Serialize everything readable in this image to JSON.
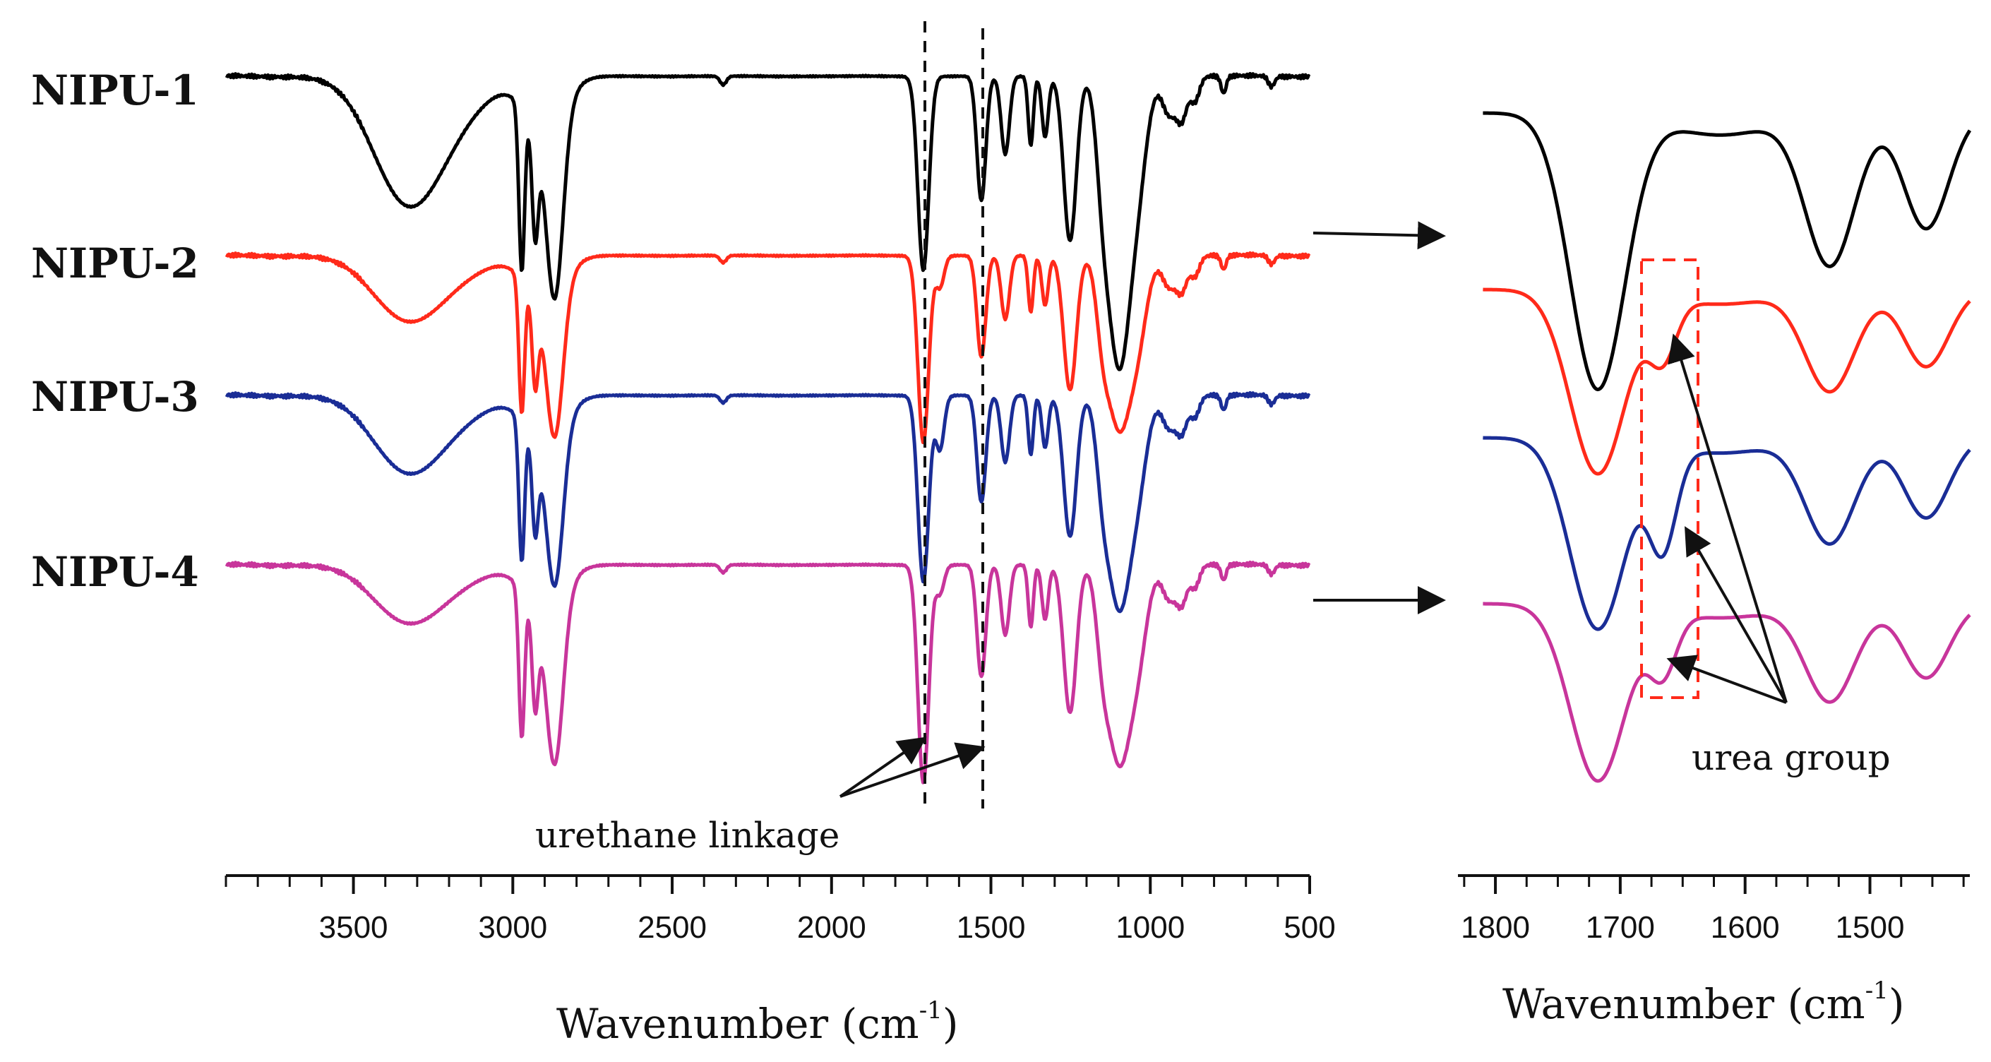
{
  "chart_data": [
    {
      "type": "line",
      "panel": "full-spectrum",
      "xlabel": "Wavenumber (cm",
      "xlabel_sup": "-1",
      "xlabel_close": ")",
      "xlim": [
        3900,
        500
      ],
      "ylabel": "",
      "ticks": [
        3500,
        3000,
        2500,
        2000,
        1500,
        1000,
        500
      ],
      "tick_labels": [
        "3500",
        "3000",
        "2500",
        "2000",
        "1500",
        "1000",
        "500"
      ],
      "series": [
        {
          "name": "NIPU-1",
          "color": "#000000",
          "offset": 0.0
        },
        {
          "name": "NIPU-2",
          "color": "#ff2a1a",
          "offset": 1.0
        },
        {
          "name": "NIPU-3",
          "color": "#1a2d96",
          "offset": 1.8
        },
        {
          "name": "NIPU-4",
          "color": "#c8359b",
          "offset": 2.85
        }
      ],
      "annotations": {
        "urethane_label": "urethane linkage",
        "urethane_positions": [
          1715,
          1535
        ]
      }
    },
    {
      "type": "line",
      "panel": "carbonyl-zoom",
      "xlabel": "Wavenumber (cm",
      "xlabel_sup": "-1",
      "xlabel_close": ")",
      "xlim": [
        1830,
        1420
      ],
      "ticks": [
        1800,
        1700,
        1600,
        1500
      ],
      "tick_labels": [
        "1800",
        "1700",
        "1600",
        "1500"
      ],
      "series": [
        {
          "name": "NIPU-1",
          "color": "#000000"
        },
        {
          "name": "NIPU-2",
          "color": "#ff2a1a"
        },
        {
          "name": "NIPU-3",
          "color": "#1a2d96"
        },
        {
          "name": "NIPU-4",
          "color": "#c8359b"
        }
      ],
      "annotations": {
        "urea_label": "urea group",
        "urea_box_range": [
          1678,
          1636
        ]
      }
    }
  ]
}
